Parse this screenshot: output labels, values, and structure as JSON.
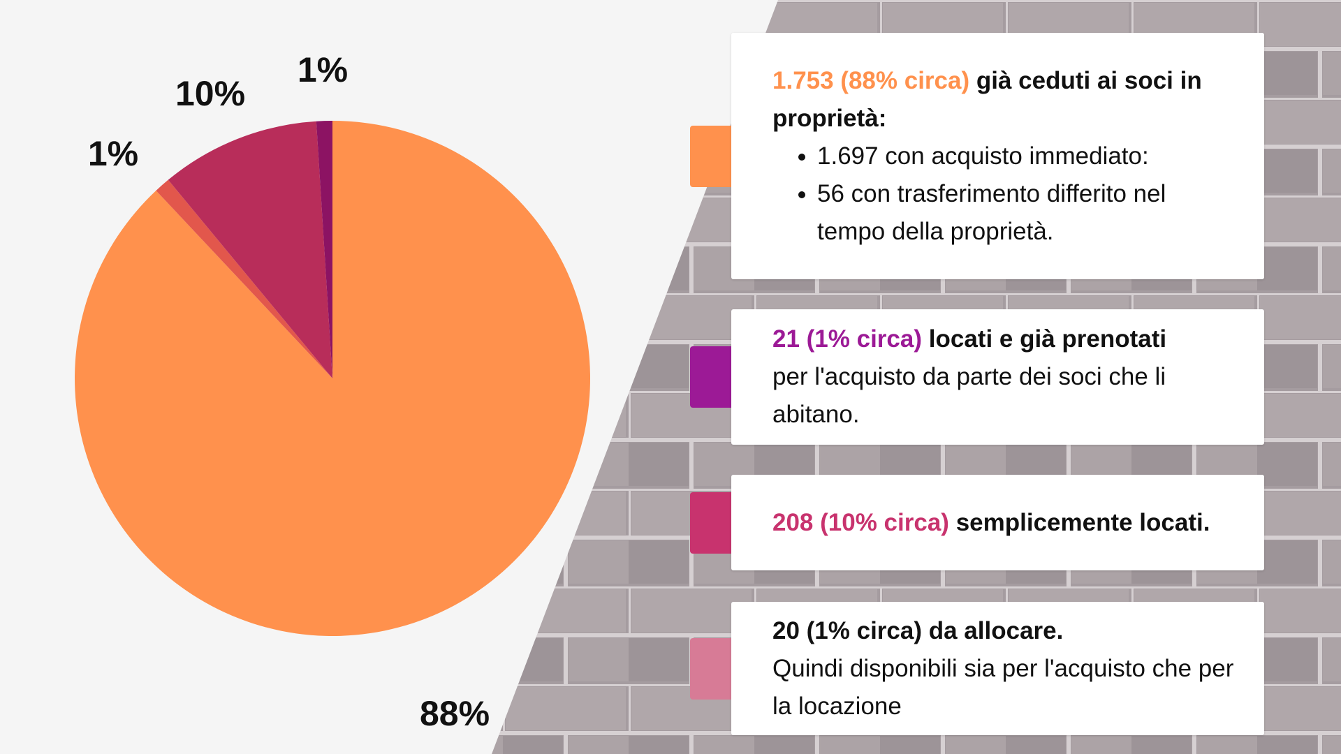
{
  "chart_data": {
    "type": "pie",
    "values": [
      88,
      1,
      10,
      1
    ],
    "value_labels": [
      "88%",
      "1%",
      "10%",
      "1%"
    ],
    "colors": [
      "#ff914d",
      "#e2574c",
      "#b82d5a",
      "#8c1363"
    ],
    "notes": [
      {
        "highlight": "1.753 (88% circa)",
        "highlight_color": "#ff914d",
        "bold": "già ceduti ai soci in proprietà:",
        "bullets": [
          "1.697 con acquisto immediato:",
          "56 con trasferimento differito nel tempo della proprietà."
        ],
        "swatch": "#ff914d"
      },
      {
        "highlight": "21 (1% circa)",
        "highlight_color": "#9c1a96",
        "bold": "locati e già prenotati",
        "text": "per l'acquisto da parte dei soci che li abitano.",
        "swatch": "#9c1a96"
      },
      {
        "highlight": "208 (10% circa)",
        "highlight_color": "#c8336e",
        "bold": "semplicemente locati.",
        "swatch": "#c8336e"
      },
      {
        "bold": "20 (1% circa) da allocare.",
        "text": "Quindi disponibili sia per l'acquisto che per la locazione",
        "swatch": "#d77b96"
      }
    ]
  }
}
